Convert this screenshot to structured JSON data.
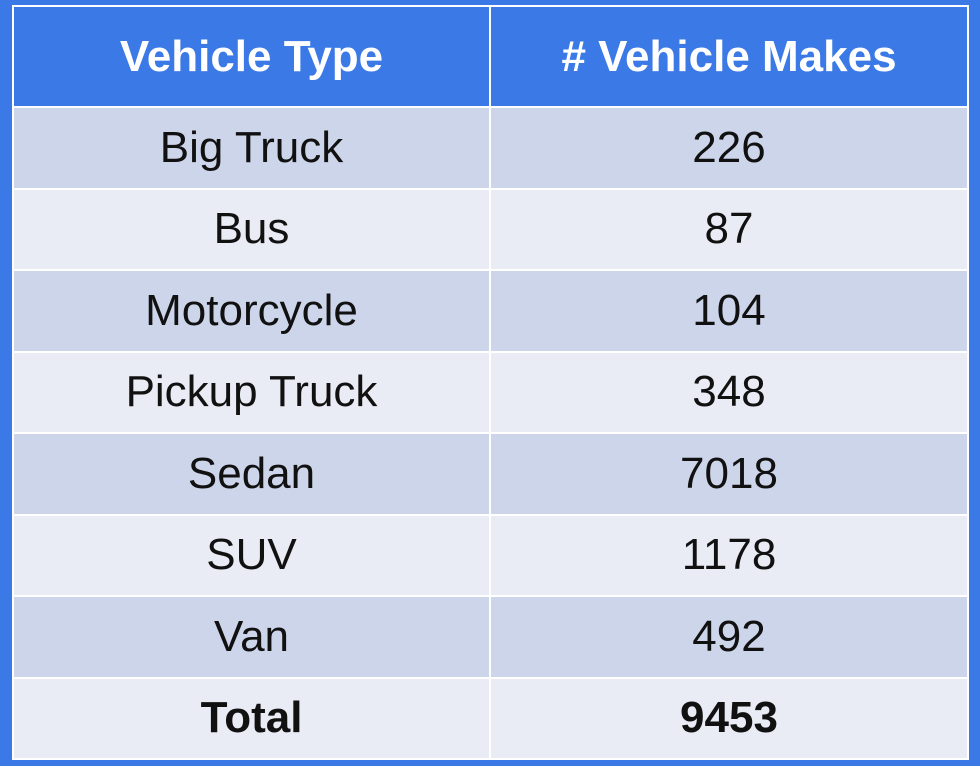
{
  "table": {
    "headers": [
      "Vehicle Type",
      "# Vehicle Makes"
    ],
    "rows": [
      {
        "type": "Big Truck",
        "count": "226"
      },
      {
        "type": "Bus",
        "count": "87"
      },
      {
        "type": "Motorcycle",
        "count": "104"
      },
      {
        "type": "Pickup Truck",
        "count": "348"
      },
      {
        "type": "Sedan",
        "count": "7018"
      },
      {
        "type": "SUV",
        "count": "1178"
      },
      {
        "type": "Van",
        "count": "492"
      }
    ],
    "total": {
      "label": "Total",
      "count": "9453"
    }
  },
  "colors": {
    "header_bg": "#3b7ae6",
    "row_band_dark": "#cdd5ea",
    "row_band_light": "#e9ebf5",
    "border": "#ffffff"
  }
}
